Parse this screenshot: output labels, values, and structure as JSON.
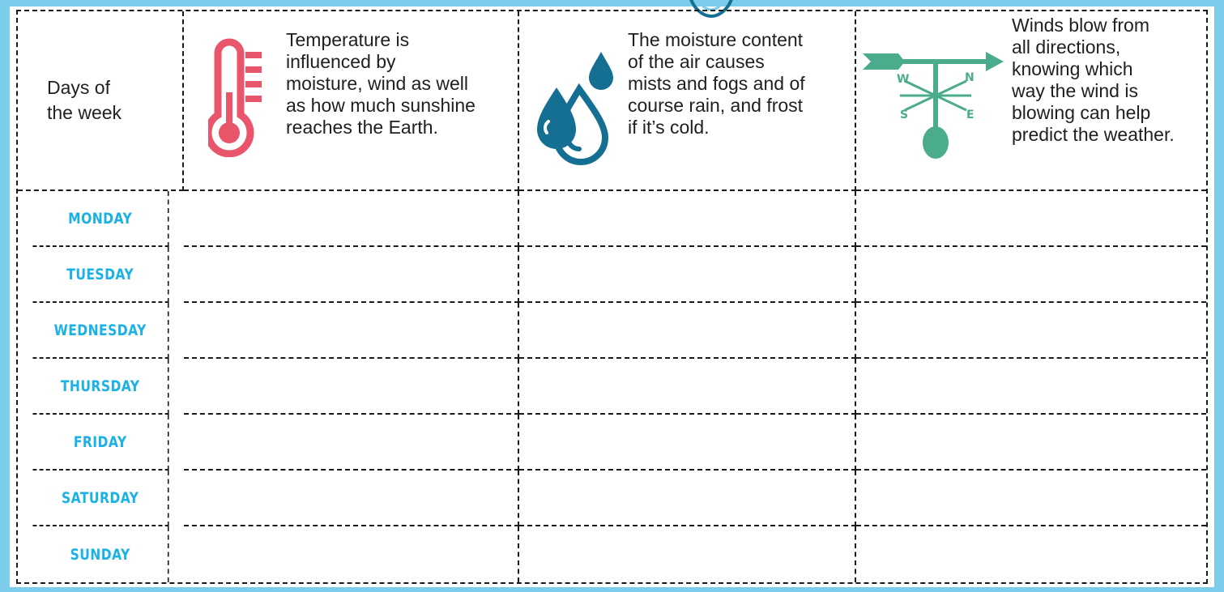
{
  "header": {
    "days_label_line1": "Days of",
    "days_label_line2": "the week",
    "temperature": {
      "icon": "thermometer-icon",
      "color": "#e9566c",
      "lines": [
        "Temperature is",
        "influenced by",
        "moisture, wind as well",
        "as how much sunshine",
        "reaches the Earth."
      ]
    },
    "moisture": {
      "icon": "water-drops-icon",
      "color": "#156f93",
      "lines": [
        "The moisture content",
        "of the air causes",
        "mists and fogs and of",
        "course rain, and frost",
        "if it’s cold."
      ]
    },
    "wind": {
      "icon": "weather-vane-icon",
      "color": "#4bab8d",
      "lines": [
        "Winds blow from",
        "all directions,",
        "knowing which",
        "way the wind is",
        "blowing can help",
        "predict the weather."
      ],
      "compass": {
        "w": "W",
        "n": "N",
        "s": "S",
        "e": "E"
      }
    }
  },
  "days": [
    "MONDAY",
    "TUESDAY",
    "WEDNESDAY",
    "THURSDAY",
    "FRIDAY",
    "SATURDAY",
    "SUNDAY"
  ],
  "colors": {
    "frame": "#7ccdec",
    "day_label": "#1ab2e6",
    "dash": "#1a1a1a"
  }
}
